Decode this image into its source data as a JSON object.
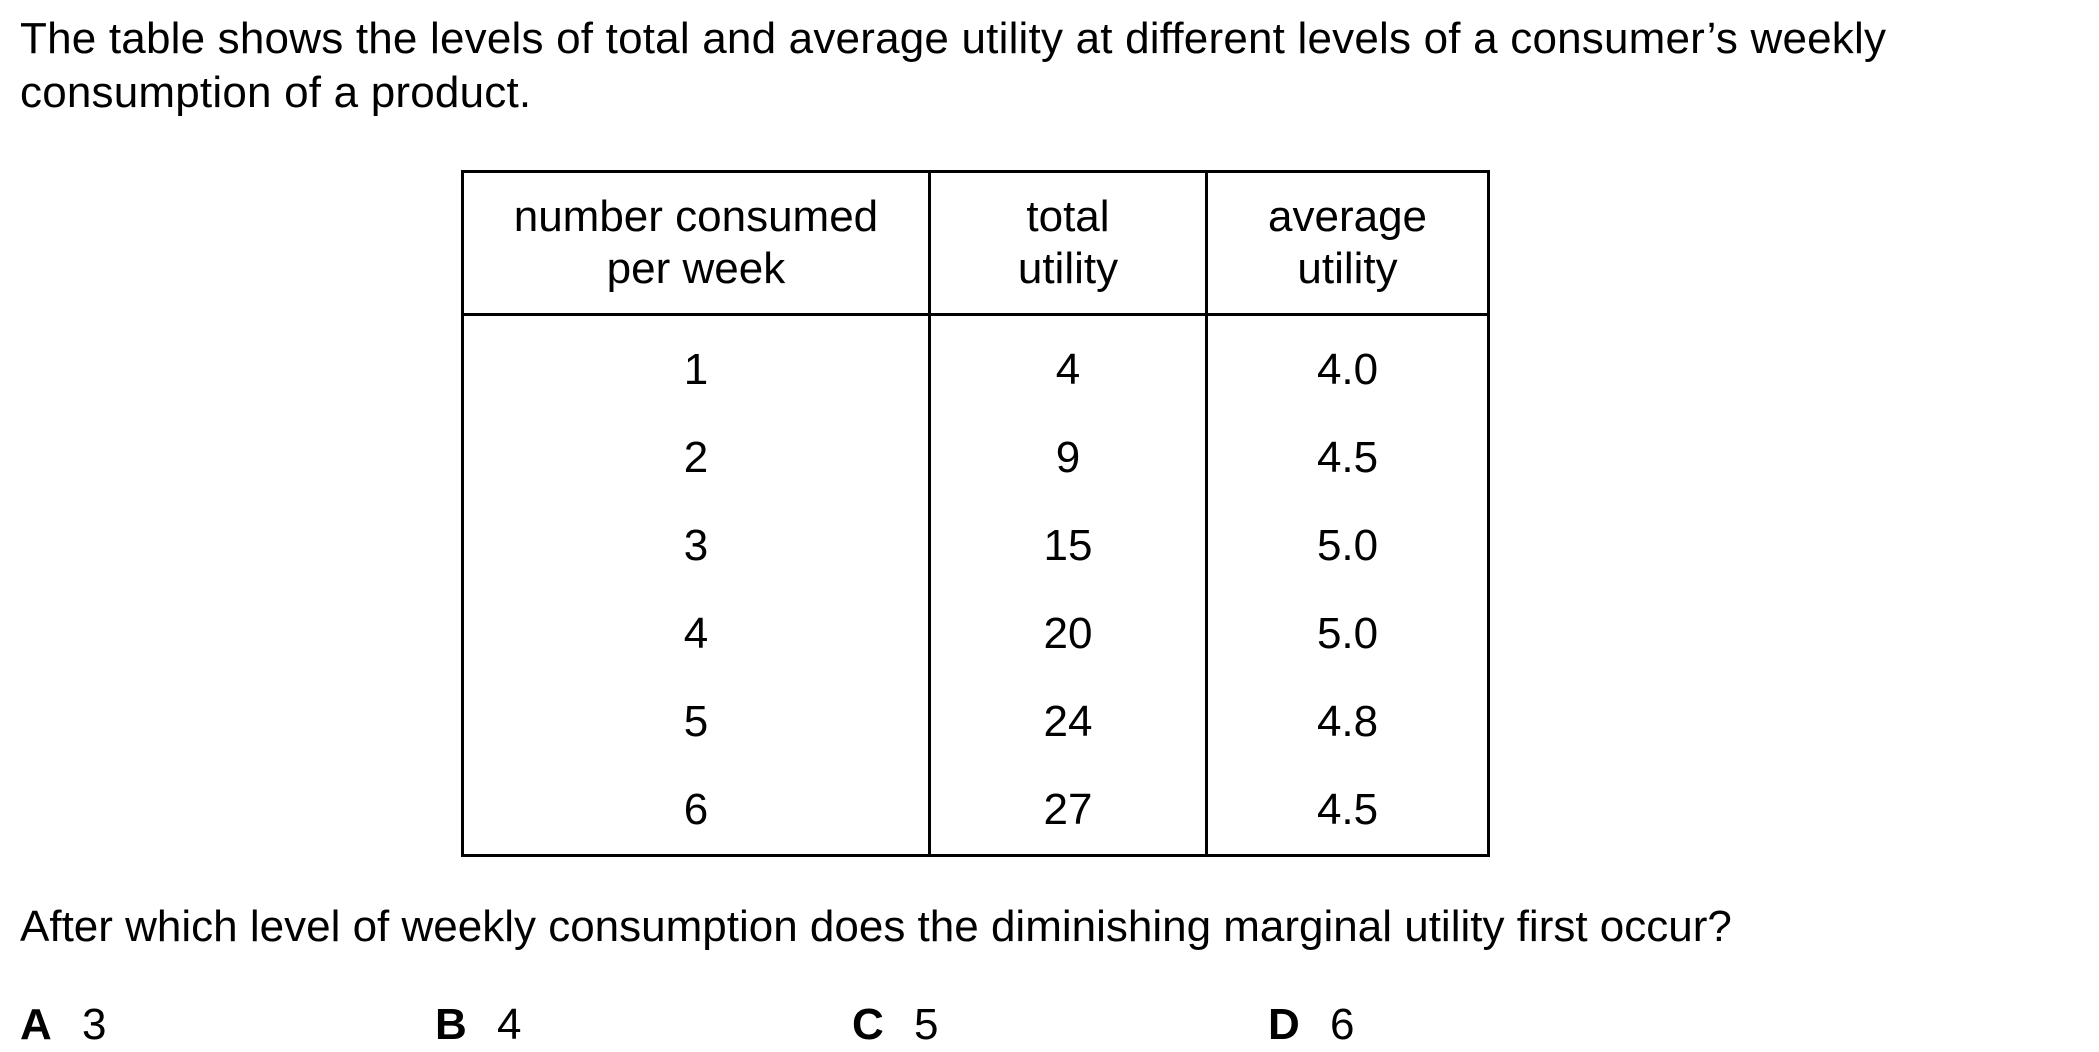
{
  "intro": "The table shows the levels of total and average utility at different levels of a consumer’s weekly consumption of a product.",
  "table": {
    "headers": [
      "number consumed\nper week",
      "total\nutility",
      "average\nutility"
    ],
    "rows": [
      [
        "1",
        "4",
        "4.0"
      ],
      [
        "2",
        "9",
        "4.5"
      ],
      [
        "3",
        "15",
        "5.0"
      ],
      [
        "4",
        "20",
        "5.0"
      ],
      [
        "5",
        "24",
        "4.8"
      ],
      [
        "6",
        "27",
        "4.5"
      ]
    ]
  },
  "question": "After which level of weekly consumption does the diminishing marginal utility first occur?",
  "options": [
    {
      "letter": "A",
      "value": "3"
    },
    {
      "letter": "B",
      "value": "4"
    },
    {
      "letter": "C",
      "value": "5"
    },
    {
      "letter": "D",
      "value": "6"
    }
  ]
}
